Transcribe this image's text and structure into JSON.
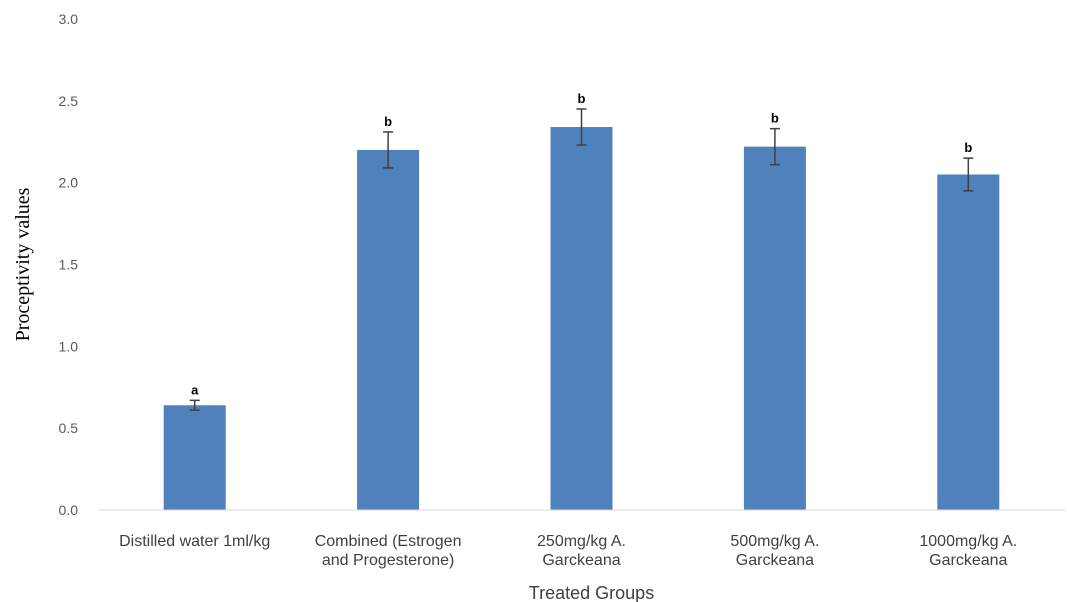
{
  "chart_data": {
    "type": "bar",
    "title": "",
    "xlabel": "Treated Groups",
    "ylabel": "Proceptivity values",
    "ylim": [
      0,
      3
    ],
    "yticks": [
      "0.0",
      "0.5",
      "1.0",
      "1.5",
      "2.0",
      "2.5",
      "3.0"
    ],
    "grid": false,
    "bar_color": "#4f81bd",
    "categories": [
      [
        "Distilled water 1ml/kg"
      ],
      [
        "Combined (Estrogen",
        "and Progesterone)"
      ],
      [
        "250mg/kg A.",
        "Garckeana"
      ],
      [
        "500mg/kg A.",
        "Garckeana"
      ],
      [
        "1000mg/kg A.",
        "Garckeana"
      ]
    ],
    "values": [
      0.64,
      2.2,
      2.34,
      2.22,
      2.05
    ],
    "errors": [
      0.03,
      0.11,
      0.11,
      0.11,
      0.1
    ],
    "significance_labels": [
      "a",
      "b",
      "b",
      "b",
      "b"
    ]
  }
}
